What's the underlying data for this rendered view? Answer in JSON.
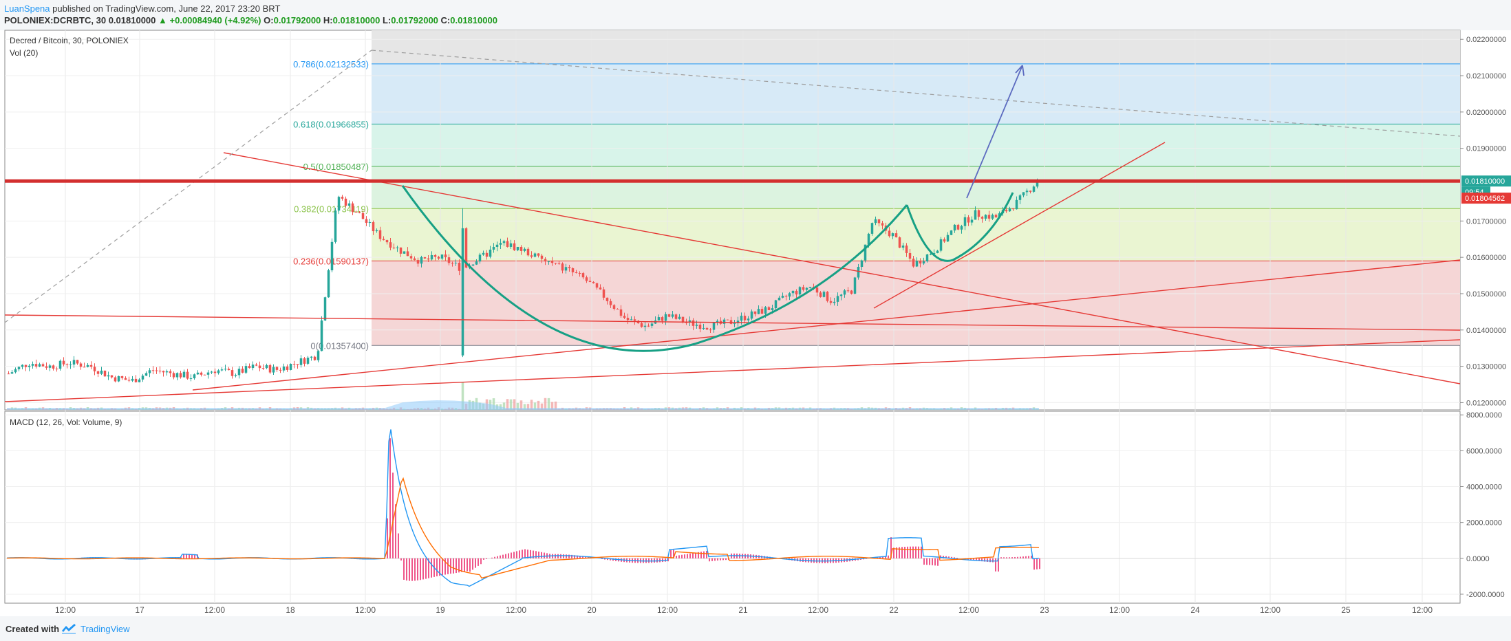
{
  "header": {
    "author": "LuanSpena",
    "published": "published on TradingView.com, June 22, 2017 23:20 BRT",
    "symbol": "POLONIEX:DCRBTC, 30",
    "last": "0.01810000",
    "change": "+0.00084940 (+4.92%)",
    "o_label": "O:",
    "o": "0.01792000",
    "h_label": "H:",
    "h": "0.01810000",
    "l_label": "L:",
    "l": "0.01792000",
    "c_label": "C:",
    "c": "0.01810000"
  },
  "pane_main": {
    "title": "Decred / Bitcoin, 30, POLONIEX",
    "vol": "Vol (20)"
  },
  "pane_macd": {
    "title": "MACD (12, 26, Vol: Volume, 9)"
  },
  "footer": {
    "created": "Created with",
    "brand": "TradingView"
  },
  "colors": {
    "up": "#26a69a",
    "down": "#ef5350",
    "trend": "#e53935",
    "cup": "#17a085",
    "arrow": "#5c6bc0",
    "macd": "#2196f3",
    "signal": "#ff6d00",
    "hist": "#e91e63"
  },
  "chart_data": [
    {
      "type": "candlestick",
      "pair": "DCR/BTC",
      "x_ticks": [
        "12:00",
        "17",
        "12:00",
        "18",
        "12:00",
        "19",
        "12:00",
        "20",
        "12:00",
        "21",
        "12:00",
        "22",
        "12:00",
        "23",
        "12:00",
        "24",
        "12:00",
        "25",
        "12:00"
      ],
      "y_ticks": [
        "0.02200000",
        "0.02100000",
        "0.02000000",
        "0.01900000",
        "0.01700000",
        "0.01600000",
        "0.01500000",
        "0.01400000",
        "0.01300000",
        "0.01200000"
      ],
      "ylim": [
        0.0118,
        0.02225
      ],
      "last_price_label": "0.01810000",
      "last_price": 0.0181,
      "countdown": "09:54",
      "bid_price_label": "0.01804562",
      "bid_price": 0.01804562,
      "fib_levels": [
        {
          "label": "0.786(0.02132533)",
          "value": 0.02132533,
          "color": "#2196f3"
        },
        {
          "label": "0.618(0.01966855)",
          "value": 0.01966855,
          "color": "#26a69a"
        },
        {
          "label": "0.5(0.01850487)",
          "value": 0.01850487,
          "color": "#4caf50"
        },
        {
          "label": "0.382(0.01734119)",
          "value": 0.01734119,
          "color": "#8bc34a"
        },
        {
          "label": "0.236(0.01590137)",
          "value": 0.01590137,
          "color": "#e53935"
        },
        {
          "label": "0(0.01357400)",
          "value": 0.013574,
          "color": "#787b86"
        }
      ],
      "price_path": [
        [
          0.013,
          0.01295
        ],
        [
          0.0,
          0.0128
        ],
        [
          0.02,
          0.0131
        ],
        [
          0.04,
          0.013
        ],
        [
          0.06,
          0.0131
        ],
        [
          0.08,
          0.013
        ],
        [
          0.1,
          0.0127
        ],
        [
          0.12,
          0.0126
        ],
        [
          0.14,
          0.0129
        ],
        [
          0.16,
          0.0128
        ],
        [
          0.18,
          0.0127
        ],
        [
          0.2,
          0.0129
        ],
        [
          0.22,
          0.0128
        ],
        [
          0.24,
          0.013
        ],
        [
          0.26,
          0.0129
        ],
        [
          0.28,
          0.0131
        ],
        [
          0.3,
          0.0133
        ],
        [
          0.32,
          0.0177
        ],
        [
          0.34,
          0.0172
        ],
        [
          0.36,
          0.0166
        ],
        [
          0.38,
          0.0162
        ],
        [
          0.4,
          0.0159
        ],
        [
          0.42,
          0.016
        ],
        [
          0.44,
          0.0157
        ],
        [
          0.46,
          0.016
        ],
        [
          0.48,
          0.0164
        ],
        [
          0.5,
          0.0162
        ],
        [
          0.52,
          0.0159
        ],
        [
          0.54,
          0.0157
        ],
        [
          0.56,
          0.0154
        ],
        [
          0.58,
          0.0149
        ],
        [
          0.6,
          0.0143
        ],
        [
          0.62,
          0.0141
        ],
        [
          0.64,
          0.0144
        ],
        [
          0.66,
          0.0142
        ],
        [
          0.68,
          0.0141
        ],
        [
          0.7,
          0.0142
        ],
        [
          0.72,
          0.0144
        ],
        [
          0.74,
          0.0146
        ],
        [
          0.76,
          0.015
        ],
        [
          0.78,
          0.0152
        ],
        [
          0.8,
          0.0148
        ],
        [
          0.82,
          0.0151
        ],
        [
          0.84,
          0.017
        ],
        [
          0.86,
          0.0166
        ],
        [
          0.88,
          0.0158
        ],
        [
          0.9,
          0.0162
        ],
        [
          0.92,
          0.0168
        ],
        [
          0.94,
          0.0172
        ],
        [
          0.96,
          0.0171
        ],
        [
          0.98,
          0.0175
        ],
        [
          1.0,
          0.0181
        ]
      ],
      "macd_ylim": [
        -2500,
        8200
      ],
      "macd_ticks": [
        "8000.0000",
        "6000.0000",
        "4000.0000",
        "2000.0000",
        "0.0000",
        "-2000.0000"
      ]
    }
  ]
}
